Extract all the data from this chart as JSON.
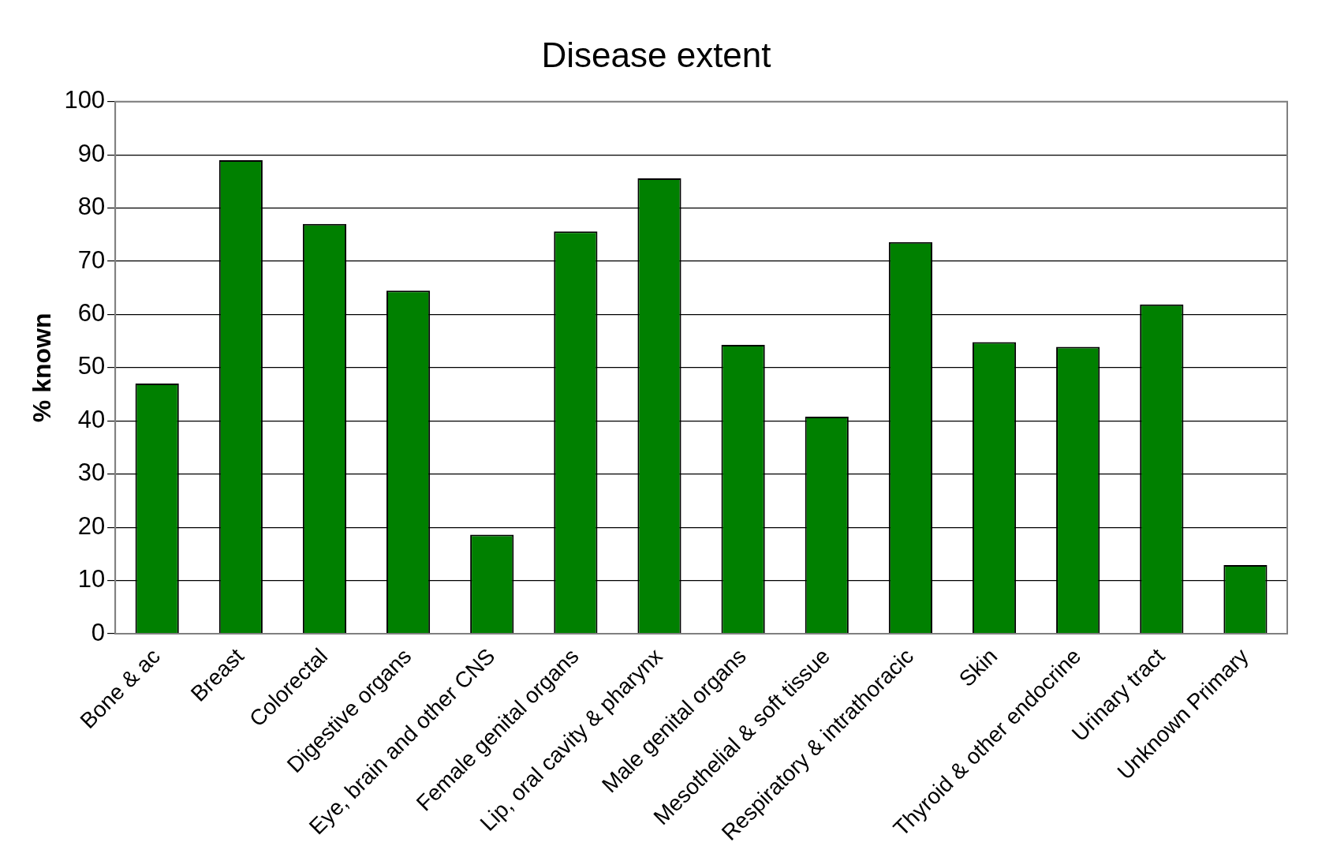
{
  "chart_data": {
    "type": "bar",
    "title": "Disease extent",
    "ylabel": "% known",
    "categories": [
      "Bone & ac",
      "Breast",
      "Colorectal",
      "Digestive organs",
      "Eye, brain and other CNS",
      "Female genital organs",
      "Lip, oral cavity & pharynx",
      "Male genital organs",
      "Mesothelial & soft tissue",
      "Respiratory & intrathoracic",
      "Skin",
      "Thyroid & other endocrine",
      "Urinary tract",
      "Unknown Primary"
    ],
    "values": [
      47,
      89,
      77,
      64.5,
      18.6,
      75.6,
      85.6,
      54.3,
      40.8,
      73.6,
      54.8,
      53.9,
      61.9,
      12.9
    ],
    "color": "#008000",
    "ylim": [
      0,
      100
    ],
    "yticks": [
      0,
      10,
      20,
      30,
      40,
      50,
      60,
      70,
      80,
      90,
      100
    ],
    "grid": "y",
    "legend": false
  }
}
